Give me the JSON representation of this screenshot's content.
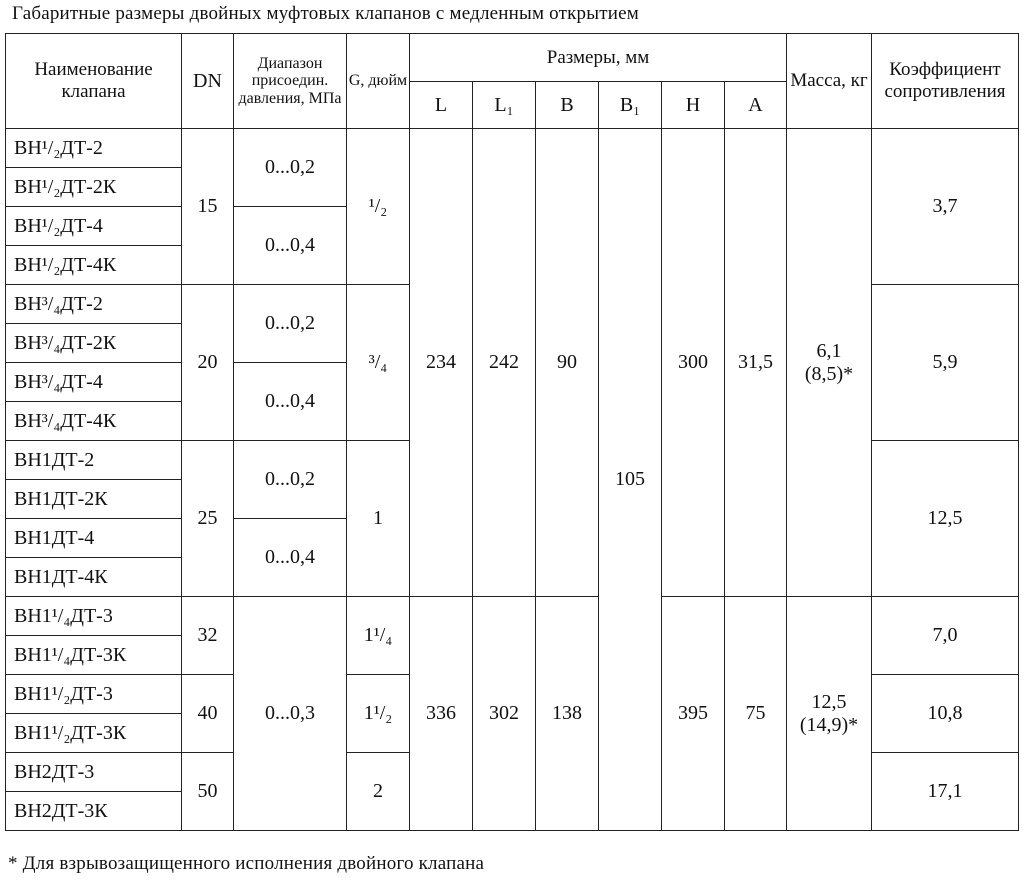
{
  "title": "Габаритные размеры двойных муфтовых клапанов с медленным открытием",
  "footnote": "* Для взрывозащищенного исполнения двойного клапана",
  "table": {
    "header": {
      "name": "Наименование клапана",
      "dn": "DN",
      "range": "Диапазон присоедин. давления, МПа",
      "g": "G, дюйм",
      "sizes": "Размеры, мм",
      "L": "L",
      "L1": "L₁",
      "B": "B",
      "B1": "B₁",
      "H": "H",
      "A": "A",
      "mass": "Масса, кг",
      "coef": "Коэффициент сопротивления"
    },
    "names": [
      "ВН¹/₂ДТ-2",
      "ВН¹/₂ДТ-2К",
      "ВН¹/₂ДТ-4",
      "ВН¹/₂ДТ-4К",
      "ВН³/₄ДТ-2",
      "ВН³/₄ДТ-2К",
      "ВН³/₄ДТ-4",
      "ВН³/₄ДТ-4К",
      "ВН1ДТ-2",
      "ВН1ДТ-2К",
      "ВН1ДТ-4",
      "ВН1ДТ-4К",
      "ВН1¹/₄ДТ-3",
      "ВН1¹/₄ДТ-3К",
      "ВН1¹/₂ДТ-3",
      "ВН1¹/₂ДТ-3К",
      "ВН2ДТ-3",
      "ВН2ДТ-3К"
    ],
    "dn": [
      "15",
      "20",
      "25",
      "32",
      "40",
      "50"
    ],
    "ranges": [
      "0...0,2",
      "0...0,4",
      "0...0,2",
      "0...0,4",
      "0...0,2",
      "0...0,4",
      "0...0,3"
    ],
    "g": [
      "¹/₂",
      "³/₄",
      "1",
      "1¹/₄",
      "1¹/₂",
      "2"
    ],
    "coef": [
      "3,7",
      "5,9",
      "12,5",
      "7,0",
      "10,8",
      "17,1"
    ],
    "dims": [
      {
        "L": "234",
        "L1": "242",
        "B": "90",
        "H": "300",
        "A": "31,5",
        "mass": "6,1",
        "mass_alt": "(8,5)*"
      },
      {
        "L": "336",
        "L1": "302",
        "B": "138",
        "H": "395",
        "A": "75",
        "mass": "12,5",
        "mass_alt": "(14,9)*"
      }
    ],
    "B1": "105"
  }
}
